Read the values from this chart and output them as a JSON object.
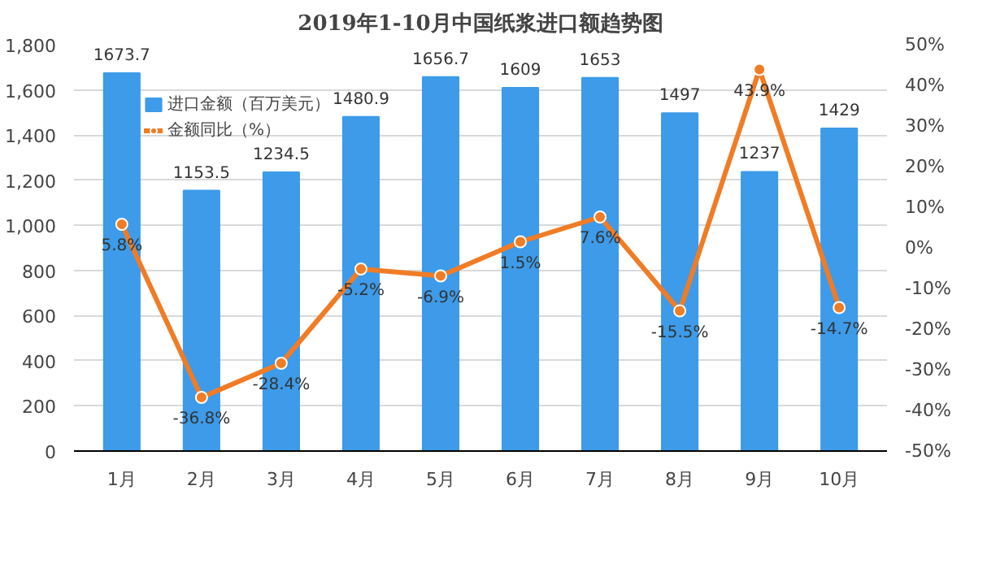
{
  "chart_data": {
    "type": "bar",
    "title": "2019年1-10月中国纸浆进口额趋势图",
    "categories": [
      "1月",
      "2月",
      "3月",
      "4月",
      "5月",
      "6月",
      "7月",
      "8月",
      "9月",
      "10月"
    ],
    "series": [
      {
        "name": "进口金额（百万美元）",
        "color": "#3d9be9",
        "values": [
          1673.7,
          1153.5,
          1234.5,
          1480.9,
          1656.7,
          1609,
          1653,
          1497,
          1237,
          1429
        ],
        "value_labels": [
          "1673.7",
          "1153.5",
          "1234.5",
          "1480.9",
          "1656.7",
          "1609",
          "1653",
          "1497",
          "1237",
          "1429"
        ]
      },
      {
        "name": "金额同比（%）",
        "type": "line",
        "axis": "y2",
        "color": "#f07c26",
        "values": [
          5.8,
          -36.8,
          -28.4,
          -5.2,
          -6.9,
          1.5,
          7.6,
          -15.5,
          43.9,
          -14.7
        ],
        "value_labels": [
          "5.8%",
          "-36.8%",
          "-28.4%",
          "-5.2%",
          "-6.9%",
          "1.5%",
          "7.6%",
          "-15.5%",
          "43.9%",
          "-14.7%"
        ]
      }
    ],
    "ylim": [
      0,
      1800
    ],
    "yticks": [
      0,
      200,
      400,
      600,
      800,
      {
        "value": 1000,
        "label": "1,000"
      },
      {
        "value": 1200,
        "label": "1,200"
      },
      {
        "value": 1400,
        "label": "1,400"
      },
      {
        "value": 1600,
        "label": "1,600"
      },
      {
        "value": 1800,
        "label": "1,800"
      }
    ],
    "y2lim": [
      -50,
      50
    ],
    "y2ticks": [
      {
        "value": -50,
        "label": "-50%"
      },
      {
        "value": -40,
        "label": "-40%"
      },
      {
        "value": -30,
        "label": "-30%"
      },
      {
        "value": -20,
        "label": "-20%"
      },
      {
        "value": -10,
        "label": "-10%"
      },
      {
        "value": 0,
        "label": "0%"
      },
      {
        "value": 10,
        "label": "10%"
      },
      {
        "value": 20,
        "label": "20%"
      },
      {
        "value": 30,
        "label": "30%"
      },
      {
        "value": 40,
        "label": "40%"
      },
      {
        "value": 50,
        "label": "50%"
      }
    ],
    "grid": "y",
    "legend": "top",
    "marker": "circle",
    "line_style": "solid"
  }
}
